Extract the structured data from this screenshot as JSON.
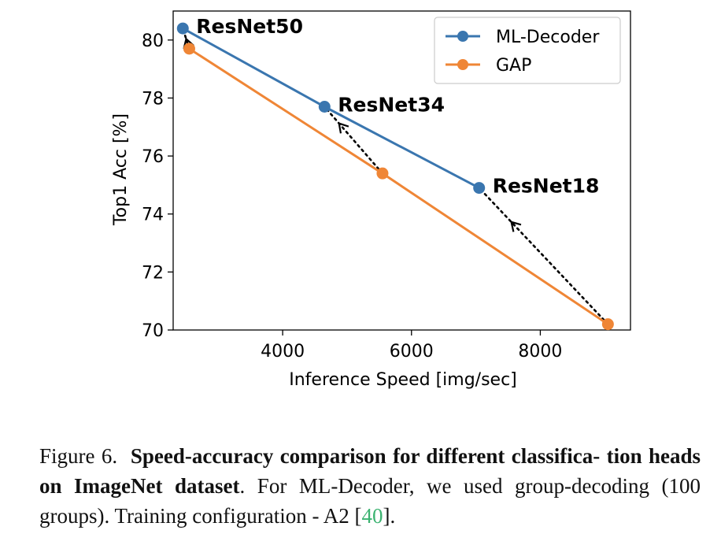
{
  "chart_data": {
    "type": "line",
    "xlabel": "Inference Speed [img/sec]",
    "ylabel": "Top1 Acc [%]",
    "xlim": [
      2300,
      9400
    ],
    "ylim": [
      70,
      81
    ],
    "xticks": [
      4000,
      6000,
      8000
    ],
    "yticks": [
      70,
      72,
      74,
      76,
      78,
      80
    ],
    "xtick_labels": [
      "4000",
      "6000",
      "8000"
    ],
    "ytick_labels": [
      "70",
      "72",
      "74",
      "76",
      "78",
      "80"
    ],
    "legend_position": "top-right",
    "grid": false,
    "series": [
      {
        "name": "ML-Decoder",
        "color": "#3a76af",
        "x": [
          2450,
          4650,
          7050
        ],
        "y": [
          80.4,
          77.7,
          74.9
        ]
      },
      {
        "name": "GAP",
        "color": "#ef8636",
        "x": [
          2550,
          5550,
          9050
        ],
        "y": [
          79.7,
          75.4,
          70.2
        ]
      }
    ],
    "annotations": [
      {
        "label": "ResNet50",
        "x": 2450,
        "y": 80.4,
        "from_x": 2550,
        "from_y": 79.7
      },
      {
        "label": "ResNet34",
        "x": 4650,
        "y": 77.7,
        "from_x": 5550,
        "from_y": 75.4
      },
      {
        "label": "ResNet18",
        "x": 7050,
        "y": 74.9,
        "from_x": 9050,
        "from_y": 70.2
      }
    ]
  },
  "caption": {
    "prefix": "Figure 6.",
    "bold_line1": "Speed-accuracy comparison for different classifica-",
    "bold_line2": "tion heads on ImageNet dataset",
    "rest1": ".  For ML-Decoder, we used",
    "rest2": "group-decoding (100 groups). Training configuration - A2 [",
    "ref": "40",
    "end": "]."
  }
}
